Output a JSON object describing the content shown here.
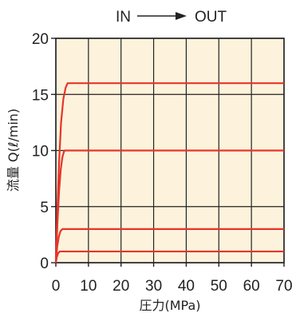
{
  "chart_data": {
    "type": "line",
    "header": {
      "in_label": "IN",
      "out_label": "OUT"
    },
    "xlabel": "圧力(MPa)",
    "ylabel": "流量 Q(ℓ/min)",
    "xlim": [
      0,
      70
    ],
    "ylim": [
      0,
      20
    ],
    "xticks": [
      "0",
      "10",
      "20",
      "30",
      "40",
      "50",
      "60",
      "70"
    ],
    "yticks": [
      "0",
      "5",
      "10",
      "15",
      "20"
    ],
    "grid": true,
    "colors": {
      "background": "#fdf3dc",
      "grid": "#222222",
      "line": "#e8342a"
    },
    "series": [
      {
        "plateau": 16,
        "points": [
          [
            0,
            0
          ],
          [
            0.5,
            5
          ],
          [
            1,
            9
          ],
          [
            1.6,
            12.5
          ],
          [
            2.3,
            14.6
          ],
          [
            3,
            15.6
          ],
          [
            3.6,
            16
          ],
          [
            70,
            16
          ]
        ]
      },
      {
        "plateau": 10,
        "points": [
          [
            0,
            0
          ],
          [
            0.5,
            3.6
          ],
          [
            1,
            6.4
          ],
          [
            1.5,
            8.3
          ],
          [
            2,
            9.4
          ],
          [
            2.6,
            10
          ],
          [
            70,
            10
          ]
        ]
      },
      {
        "plateau": 3,
        "points": [
          [
            0,
            0
          ],
          [
            0.4,
            1.4
          ],
          [
            0.9,
            2.3
          ],
          [
            1.4,
            2.8
          ],
          [
            2,
            3
          ],
          [
            70,
            3
          ]
        ]
      },
      {
        "plateau": 1,
        "points": [
          [
            0,
            0
          ],
          [
            0.3,
            0.5
          ],
          [
            0.7,
            0.85
          ],
          [
            1.2,
            1
          ],
          [
            70,
            1
          ]
        ]
      }
    ]
  }
}
